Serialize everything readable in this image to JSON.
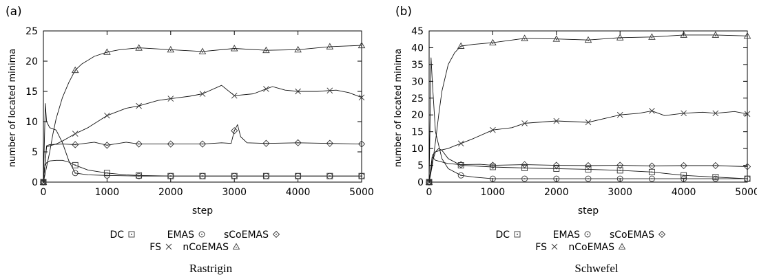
{
  "chart_data": [
    {
      "type": "line",
      "panel_label": "(a)",
      "caption": "Rastrigin",
      "xlabel": "step",
      "ylabel": "number of located minima",
      "xlim": [
        0,
        5000
      ],
      "ylim": [
        0,
        25
      ],
      "xticks": [
        0,
        1000,
        2000,
        3000,
        4000,
        5000
      ],
      "yticks": [
        0,
        5,
        10,
        15,
        20,
        25
      ],
      "grid": false,
      "legend_position": "bottom",
      "series": [
        {
          "name": "DC",
          "marker": "square",
          "x": [
            0,
            20,
            50,
            100,
            200,
            300,
            400,
            500,
            700,
            1000,
            1300,
            1500,
            2000,
            2500,
            3000,
            3500,
            4000,
            4500,
            5000
          ],
          "y": [
            0,
            2.5,
            3.2,
            3.5,
            3.6,
            3.6,
            3.3,
            2.8,
            2.0,
            1.5,
            1.2,
            1.1,
            1.0,
            1.0,
            1.0,
            1.0,
            1.0,
            1.0,
            1.0
          ]
        },
        {
          "name": "EMAS",
          "marker": "circle",
          "x": [
            0,
            30,
            50,
            100,
            150,
            200,
            300,
            400,
            500,
            700,
            1000,
            1500,
            2000,
            2500,
            3000,
            3500,
            4000,
            4500,
            5000
          ],
          "y": [
            0,
            13,
            10,
            9,
            8.8,
            8.6,
            6.5,
            3.5,
            1.5,
            1.2,
            1.1,
            1.0,
            1.0,
            1.0,
            1.0,
            1.0,
            1.0,
            1.0,
            1.0
          ]
        },
        {
          "name": "sCoEMAS",
          "marker": "diamond",
          "x": [
            0,
            50,
            100,
            300,
            500,
            800,
            1000,
            1300,
            1500,
            2000,
            2500,
            2800,
            2950,
            3000,
            3050,
            3100,
            3200,
            3500,
            4000,
            4500,
            5000
          ],
          "y": [
            0,
            6,
            6.2,
            6.3,
            6.2,
            6.6,
            6.1,
            6.6,
            6.3,
            6.3,
            6.3,
            6.5,
            6.4,
            8.5,
            9.5,
            7.5,
            6.5,
            6.4,
            6.5,
            6.4,
            6.3
          ]
        },
        {
          "name": "FS",
          "marker": "x",
          "x": [
            0,
            50,
            100,
            200,
            300,
            400,
            500,
            700,
            1000,
            1300,
            1500,
            1800,
            2000,
            2300,
            2500,
            2800,
            3000,
            3300,
            3600,
            3800,
            4000,
            4300,
            4600,
            4800,
            5000
          ],
          "y": [
            0,
            5.8,
            6.0,
            6.3,
            6.8,
            7.4,
            8.0,
            9.0,
            11.0,
            12.2,
            12.6,
            13.5,
            13.8,
            14.2,
            14.6,
            16.0,
            14.3,
            14.6,
            15.8,
            15.2,
            15.0,
            15.0,
            15.2,
            14.8,
            14.0
          ]
        },
        {
          "name": "nCoEMAS",
          "marker": "triangle",
          "x": [
            0,
            50,
            100,
            150,
            200,
            300,
            400,
            500,
            600,
            800,
            1000,
            1200,
            1500,
            2000,
            2500,
            3000,
            3500,
            4000,
            4500,
            5000
          ],
          "y": [
            0,
            2.5,
            5.0,
            8.0,
            10.5,
            14.0,
            16.5,
            18.5,
            19.5,
            20.8,
            21.5,
            21.9,
            22.2,
            21.9,
            21.6,
            22.1,
            21.8,
            21.9,
            22.4,
            22.6
          ]
        }
      ]
    },
    {
      "type": "line",
      "panel_label": "(b)",
      "caption": "Schwefel",
      "xlabel": "step",
      "ylabel": "number of located minima",
      "xlim": [
        0,
        5000
      ],
      "ylim": [
        0,
        45
      ],
      "xticks": [
        0,
        1000,
        2000,
        3000,
        4000,
        5000
      ],
      "yticks": [
        0,
        5,
        10,
        15,
        20,
        25,
        30,
        35,
        40,
        45
      ],
      "grid": false,
      "legend_position": "bottom",
      "series": [
        {
          "name": "DC",
          "marker": "square",
          "x": [
            0,
            50,
            100,
            150,
            200,
            300,
            500,
            1000,
            1500,
            2000,
            2500,
            3000,
            3500,
            4000,
            4500,
            5000
          ],
          "y": [
            0,
            6,
            9,
            10,
            9.5,
            7,
            5.0,
            4.5,
            4.2,
            4.0,
            3.8,
            3.5,
            3.0,
            2.0,
            1.5,
            1.0
          ]
        },
        {
          "name": "EMAS",
          "marker": "circle",
          "x": [
            0,
            30,
            50,
            100,
            200,
            300,
            500,
            700,
            1000,
            1500,
            2000,
            2500,
            3000,
            3500,
            4000,
            4500,
            5000
          ],
          "y": [
            0,
            37,
            30,
            15,
            7,
            4,
            2.0,
            1.5,
            1.0,
            1.0,
            1.0,
            1.0,
            1.0,
            1.0,
            1.0,
            1.0,
            1.0
          ]
        },
        {
          "name": "sCoEMAS",
          "marker": "diamond",
          "x": [
            0,
            50,
            100,
            200,
            300,
            500,
            800,
            1000,
            1500,
            2000,
            2500,
            3000,
            3500,
            4000,
            4500,
            5000
          ],
          "y": [
            0,
            7.5,
            6.5,
            6.0,
            5.5,
            5.2,
            5.3,
            5.0,
            5.2,
            5.0,
            4.9,
            5.0,
            4.8,
            4.9,
            4.9,
            4.6
          ]
        },
        {
          "name": "FS",
          "marker": "x",
          "x": [
            0,
            50,
            100,
            200,
            300,
            400,
            500,
            700,
            1000,
            1300,
            1500,
            2000,
            2500,
            3000,
            3300,
            3500,
            3700,
            4000,
            4300,
            4500,
            4800,
            5000
          ],
          "y": [
            0,
            8.0,
            9.0,
            9.6,
            10.0,
            10.8,
            11.5,
            13.0,
            15.5,
            16.2,
            17.5,
            18.2,
            17.8,
            20.0,
            20.5,
            21.2,
            19.8,
            20.5,
            20.8,
            20.5,
            21.0,
            20.3
          ]
        },
        {
          "name": "nCoEMAS",
          "marker": "triangle",
          "x": [
            0,
            50,
            100,
            150,
            200,
            300,
            400,
            500,
            700,
            1000,
            1500,
            2000,
            2500,
            3000,
            3500,
            4000,
            4500,
            5000
          ],
          "y": [
            0,
            5,
            12,
            20,
            27,
            35,
            38.5,
            40.5,
            41.0,
            41.5,
            42.8,
            42.6,
            42.3,
            43.0,
            43.2,
            43.8,
            43.8,
            43.5
          ]
        }
      ]
    }
  ]
}
